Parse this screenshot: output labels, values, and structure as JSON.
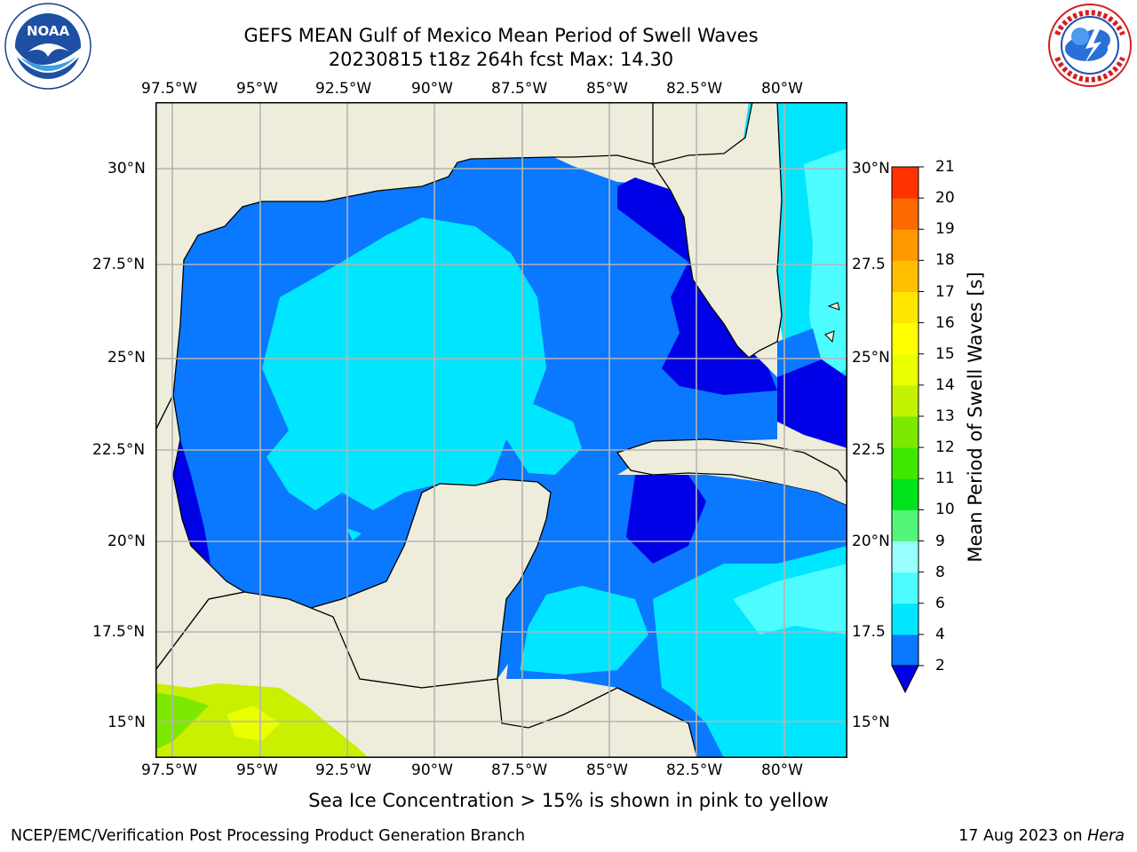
{
  "header": {
    "title_line1": "GEFS MEAN Gulf of Mexico Mean Period of Swell Waves",
    "title_line2": "20230815 t18z 264h fcst   Max: 14.30",
    "left_logo_text": "NOAA",
    "left_logo_ring": "NATIONAL OCEANIC AND ATMOSPHERIC ADMINISTRATION · U.S. DEPARTMENT OF COMMERCE",
    "right_logo_ring": "NATIONAL WEATHER SERVICE"
  },
  "map": {
    "lon_labels": [
      "97.5°W",
      "95°W",
      "92.5°W",
      "90°W",
      "87.5°W",
      "85°W",
      "82.5°W",
      "80°W"
    ],
    "lat_labels_left": [
      "30°N",
      "27.5°N",
      "25°N",
      "22.5°N",
      "20°N",
      "17.5°N",
      "15°N"
    ],
    "lat_labels_right": [
      "30°N",
      "27.5",
      "25°N",
      "22.5",
      "20°N",
      "17.5",
      "15°N"
    ]
  },
  "colorbar": {
    "label": "Mean Period of Swell Waves [s]",
    "ticks": [
      "2",
      "4",
      "6",
      "8",
      "9",
      "10",
      "11",
      "12",
      "13",
      "14",
      "15",
      "16",
      "17",
      "18",
      "19",
      "20",
      "21"
    ],
    "colors": [
      "#0a78ff",
      "#00e6ff",
      "#4dfcff",
      "#99ffff",
      "#55f57a",
      "#00e21a",
      "#3fe800",
      "#7de800",
      "#c2f200",
      "#eaff00",
      "#ffff00",
      "#ffe600",
      "#ffbe00",
      "#ff9900",
      "#ff6a00",
      "#ff3300"
    ],
    "under_color": "#0000e6"
  },
  "annotation": "Sea Ice Concentration > 15% is shown in pink to yellow",
  "footer": {
    "left": "NCEP/EMC/Verification Post Processing Product Generation Branch",
    "date": "17 Aug 2023 on ",
    "host": "Hera"
  },
  "colors": {
    "land": "#eeeddc",
    "mean_2_4": "#0a78ff",
    "low_below_2": "#0000e6",
    "band_4_6": "#00e6ff",
    "band_6_8": "#4dfcff",
    "pacific_high": "#c8f000",
    "grid": "#b4b4b4"
  }
}
